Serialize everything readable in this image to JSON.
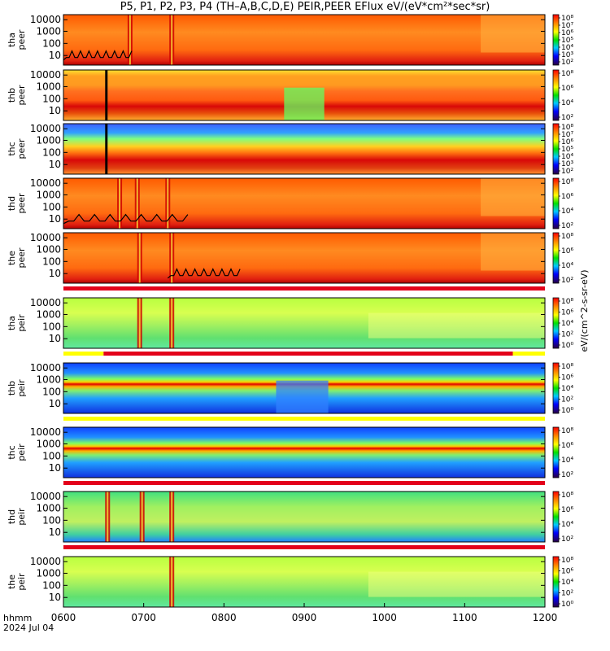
{
  "title": "P5, P1, P2, P3, P4 (TH–A,B,C,D,E) PEIR,PEER EFlux eV/(eV*cm²*sec*sr)",
  "footer": {
    "x_title": "hhmm",
    "date": "2024 Jul 04"
  },
  "colors": {
    "bar_red": "#e3001b",
    "bar_yellow": "#ffff00",
    "frame": "#000000"
  },
  "chart_data": {
    "type": "heatmap",
    "x_ticks": [
      "0600",
      "0700",
      "0800",
      "0900",
      "1000",
      "1100",
      "1200"
    ],
    "x_range_hours": [
      6,
      12
    ],
    "y_scale": "log",
    "y_ticks": [
      "10",
      "100",
      "1000",
      "10000"
    ],
    "cb_label": "eV/(cm^2-s-sr-eV)",
    "panels": [
      {
        "probe": "tha",
        "species": "peer",
        "ylabel": [
          "tha",
          "peer"
        ],
        "palette": "hot",
        "cb_ticks": [
          "10²",
          "10³",
          "10⁴",
          "10⁵",
          "10⁶",
          "10⁷",
          "10⁸"
        ],
        "dropouts_h": [
          6.83,
          7.35
        ],
        "trace_h": [
          6.0,
          6.85
        ],
        "bar": "none"
      },
      {
        "probe": "thb",
        "species": "peer",
        "ylabel": [
          "thb",
          "peer"
        ],
        "palette": "hot_band",
        "cb_ticks": [
          "10²",
          "10⁴",
          "10⁶",
          "10⁸"
        ],
        "gap_h": [
          6.52,
          6.55
        ],
        "dip_h": [
          8.75,
          9.25
        ],
        "bar": "none"
      },
      {
        "probe": "thc",
        "species": "peer",
        "ylabel": [
          "thc",
          "peer"
        ],
        "palette": "blue_top",
        "cb_ticks": [
          "10²",
          "10³",
          "10⁴",
          "10⁵",
          "10⁶",
          "10⁷",
          "10⁸"
        ],
        "gap_h": [
          6.52,
          6.55
        ],
        "bar": "none"
      },
      {
        "probe": "thd",
        "species": "peer",
        "ylabel": [
          "thd",
          "peer"
        ],
        "palette": "hot",
        "cb_ticks": [
          "10²",
          "10⁴",
          "10⁶",
          "10⁸"
        ],
        "dropouts_h": [
          6.7,
          6.92,
          7.3
        ],
        "trace_h": [
          6.0,
          7.55
        ],
        "bar": "none"
      },
      {
        "probe": "the",
        "species": "peer",
        "ylabel": [
          "the",
          "peer"
        ],
        "palette": "hot",
        "cb_ticks": [
          "10²",
          "10⁴",
          "10⁶",
          "10⁸"
        ],
        "dropouts_h": [
          6.95,
          7.35
        ],
        "trace_h": [
          7.3,
          8.2
        ],
        "bar": "red"
      },
      {
        "probe": "tha",
        "species": "peir",
        "ylabel": [
          "tha",
          "peir"
        ],
        "palette": "ion",
        "cb_ticks": [
          "10⁰",
          "10²",
          "10⁴",
          "10⁶",
          "10⁸"
        ],
        "dropouts_h": [
          6.95,
          7.35
        ],
        "bar": "red_yellow"
      },
      {
        "probe": "thb",
        "species": "peir",
        "ylabel": [
          "thb",
          "peir"
        ],
        "palette": "ion_band",
        "cb_ticks": [
          "10⁰",
          "10²",
          "10⁴",
          "10⁶",
          "10⁸"
        ],
        "dip_h": [
          8.65,
          9.3
        ],
        "bar": "yellow"
      },
      {
        "probe": "thc",
        "species": "peir",
        "ylabel": [
          "thc",
          "peir"
        ],
        "palette": "ion_band",
        "cb_ticks": [
          "10²",
          "10⁴",
          "10⁶",
          "10⁸"
        ],
        "bar": "red"
      },
      {
        "probe": "thd",
        "species": "peir",
        "ylabel": [
          "thd",
          "peir"
        ],
        "palette": "ion_hot",
        "cb_ticks": [
          "10²",
          "10⁴",
          "10⁶",
          "10⁸"
        ],
        "dropouts_h": [
          6.55,
          6.98,
          7.35
        ],
        "bar": "red"
      },
      {
        "probe": "the",
        "species": "peir",
        "ylabel": [
          "the",
          "peir"
        ],
        "palette": "ion",
        "cb_ticks": [
          "10⁰",
          "10²",
          "10⁴",
          "10⁶",
          "10⁸"
        ],
        "dropouts_h": [
          7.35
        ],
        "bar": "none"
      }
    ]
  }
}
